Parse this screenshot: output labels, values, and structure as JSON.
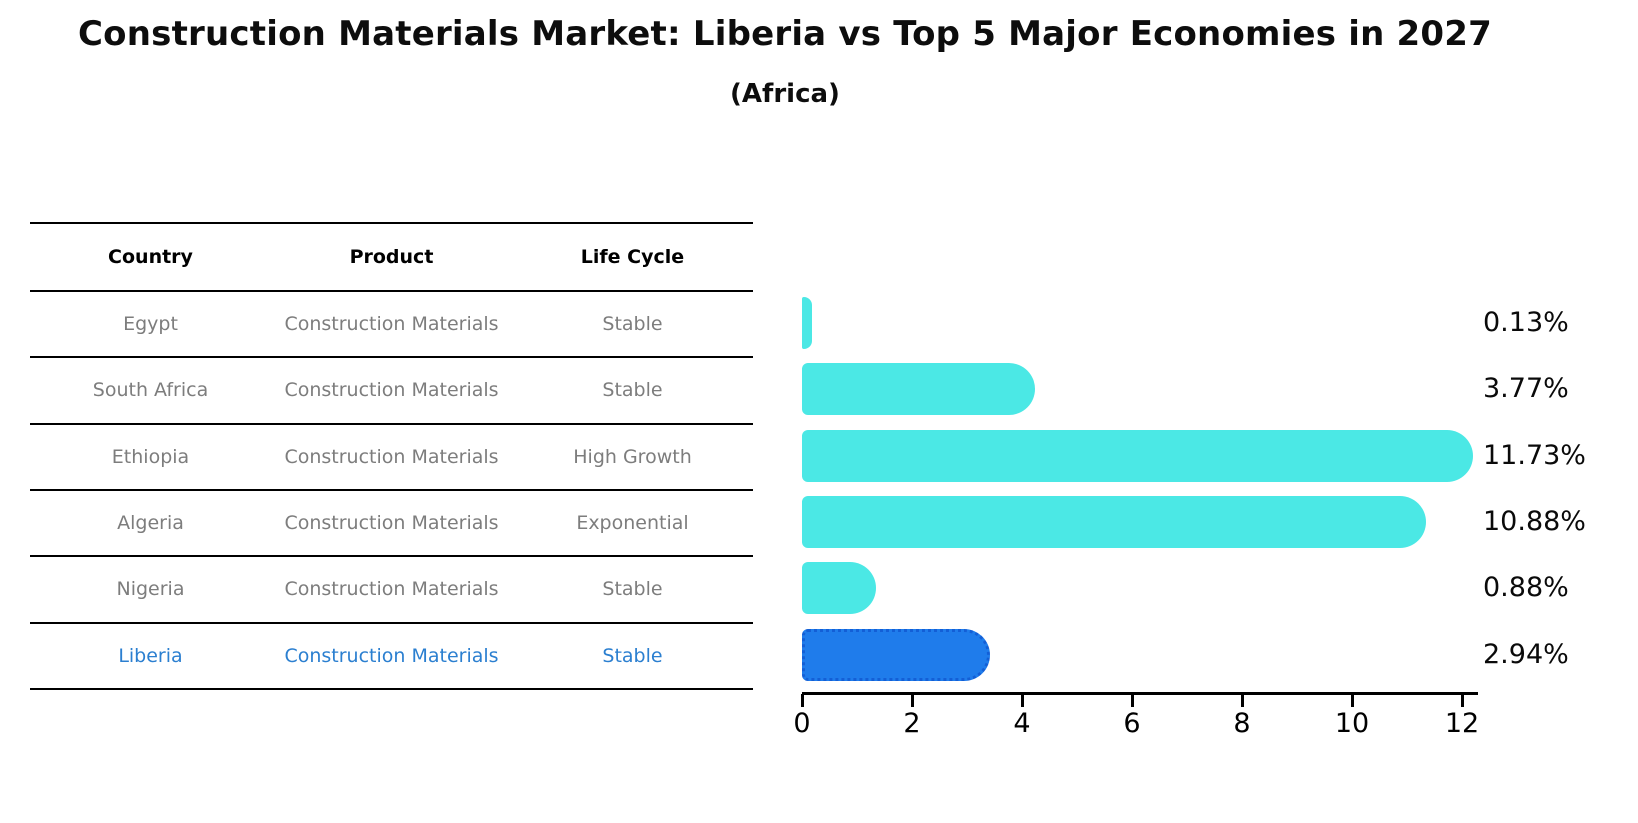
{
  "header": {
    "title": "Construction Materials Market: Liberia vs Top 5 Major Economies in 2027",
    "subtitle": "(Africa)"
  },
  "table": {
    "headers": [
      "Country",
      "Product",
      "Life Cycle"
    ],
    "rows": [
      {
        "cells": [
          "Egypt",
          "Construction Materials",
          "Stable"
        ],
        "highlight": false
      },
      {
        "cells": [
          "South Africa",
          "Construction Materials",
          "Stable"
        ],
        "highlight": false
      },
      {
        "cells": [
          "Ethiopia",
          "Construction Materials",
          "High Growth"
        ],
        "highlight": false
      },
      {
        "cells": [
          "Algeria",
          "Construction Materials",
          "Exponential"
        ],
        "highlight": false
      },
      {
        "cells": [
          "Nigeria",
          "Construction Materials",
          "Stable"
        ],
        "highlight": false
      },
      {
        "cells": [
          "Liberia",
          "Construction Materials",
          "Stable"
        ],
        "highlight": true
      }
    ]
  },
  "chart_data": {
    "type": "bar",
    "orientation": "horizontal",
    "title": "Construction Materials Market: Liberia vs Top 5 Major Economies in 2027 (Africa)",
    "categories": [
      "Egypt",
      "South Africa",
      "Ethiopia",
      "Algeria",
      "Nigeria",
      "Liberia"
    ],
    "values": [
      0.13,
      3.77,
      11.73,
      10.88,
      0.88,
      2.94
    ],
    "value_labels": [
      "0.13%",
      "3.77%",
      "11.73%",
      "10.88%",
      "0.88%",
      "2.94%"
    ],
    "xlabel": "",
    "ylabel": "",
    "xlim": [
      0,
      12
    ],
    "x_ticks": [
      0,
      2,
      4,
      6,
      8,
      10,
      12
    ],
    "grid": false,
    "legend": null,
    "highlight_index": 5,
    "bar_color": "#4be8e5",
    "highlight_bar_color": "#1f7ceb",
    "highlight_border_color": "#135fd6",
    "highlight_text_color": "#2b7fd0",
    "text_color": "#7d7d7d"
  }
}
